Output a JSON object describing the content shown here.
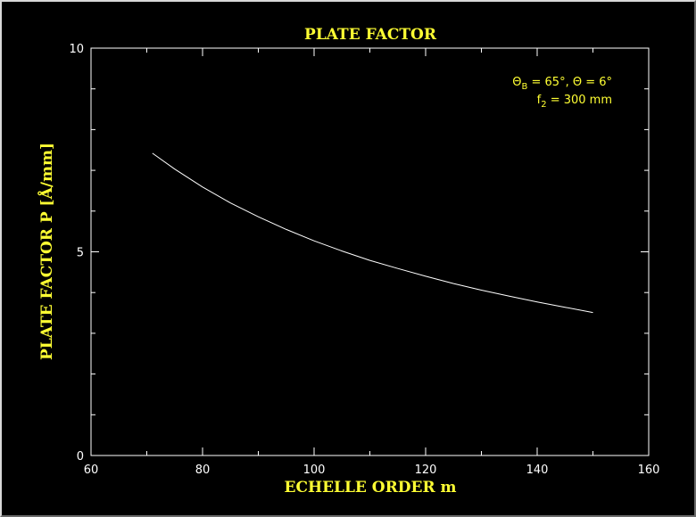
{
  "chart_data": {
    "type": "line",
    "title": "PLATE FACTOR",
    "xlabel": "ECHELLE ORDER  m",
    "ylabel": "PLATE FACTOR  P [Å/mm]",
    "xlim": [
      60,
      160
    ],
    "ylim": [
      0,
      10
    ],
    "x_major_ticks": [
      60,
      80,
      100,
      120,
      140,
      160
    ],
    "y_major_ticks": [
      0,
      5,
      10
    ],
    "x_minor_step": 10,
    "y_minor_step": 1,
    "x_tick_labels": [
      "60",
      "80",
      "100",
      "120",
      "140",
      "160"
    ],
    "y_tick_labels": [
      "0",
      "5",
      "10"
    ],
    "grid": false,
    "series": [
      {
        "color": "#ffffff",
        "x": [
          71,
          75,
          80,
          85,
          90,
          95,
          100,
          105,
          110,
          115,
          120,
          125,
          130,
          135,
          140,
          145,
          150
        ],
        "y": [
          7.42,
          7.03,
          6.59,
          6.2,
          5.86,
          5.55,
          5.27,
          5.02,
          4.79,
          4.59,
          4.4,
          4.22,
          4.06,
          3.91,
          3.77,
          3.64,
          3.51
        ]
      }
    ],
    "annotations": [
      {
        "line1_theta": "Θ",
        "line1_sub": "B",
        "line1_rest": " = 65°, Θ = 6°"
      },
      {
        "line2_f": "f",
        "line2_sub": "2",
        "line2_rest": "  = 300 mm"
      }
    ]
  },
  "colors": {
    "background": "#000000",
    "axes": "#ffffff",
    "text_highlight": "#ffff33"
  }
}
